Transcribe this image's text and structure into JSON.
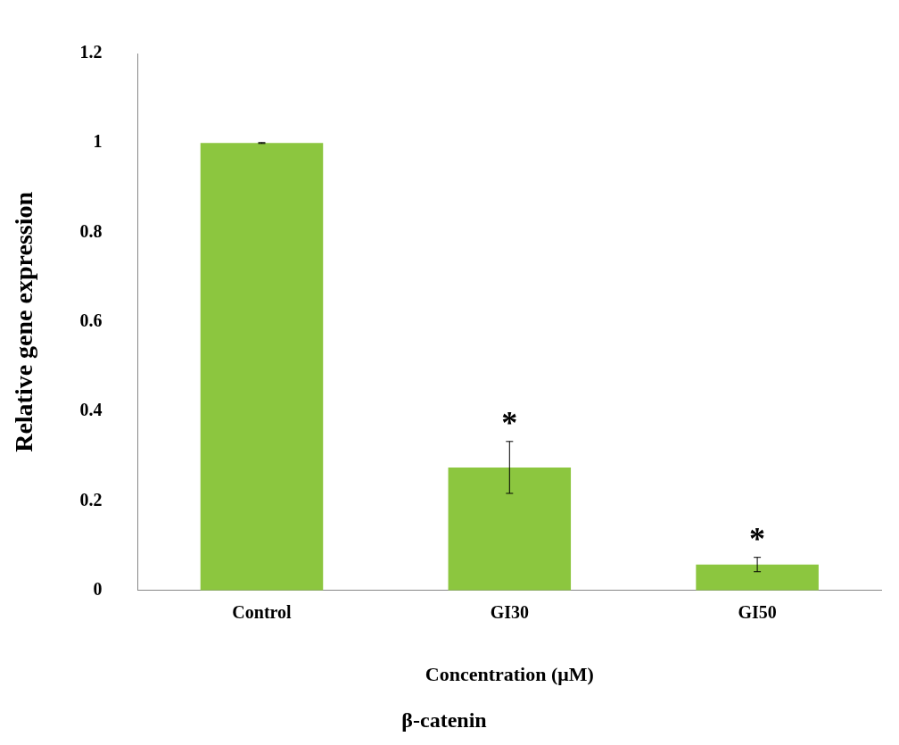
{
  "chart_data": {
    "type": "bar",
    "title": "β-catenin",
    "xlabel": "Concentration (μM)",
    "ylabel": "Relative gene expression",
    "categories": [
      "Control",
      "GI30",
      "GI50"
    ],
    "values": [
      1,
      0.275,
      0.058
    ],
    "errors": [
      0.001,
      0.058,
      0.016
    ],
    "color": "#8cc63f",
    "ylim": [
      0,
      1.2
    ],
    "yticks": [
      0,
      0.2,
      0.4,
      0.6,
      0.8,
      1,
      1.2
    ],
    "annotations": [
      "*",
      "*"
    ],
    "grid": false,
    "legend": false
  }
}
